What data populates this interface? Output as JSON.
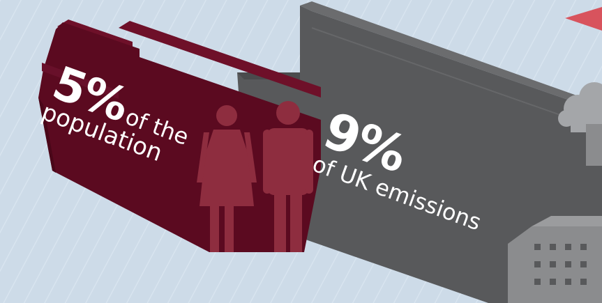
{
  "population_stat": {
    "percent": "5%",
    "text_line1": "of the",
    "text_line2": "population"
  },
  "emissions_stat": {
    "percent": "9%",
    "text": "of UK emissions"
  },
  "colors": {
    "background": "#cddbe8",
    "population_block": "#5b0a20",
    "population_block_shade": "#4a0719",
    "people_figures": "#8e2d3f",
    "emissions_block": "#58595b",
    "emissions_block_top": "#6b6c6e",
    "factory": "#8b8c8e",
    "smoke": "#a4a6a9",
    "flag": "#d8535d"
  },
  "icons": [
    "woman-figure-icon",
    "man-figure-icon",
    "factory-icon",
    "smoke-icon",
    "red-flag-icon"
  ]
}
